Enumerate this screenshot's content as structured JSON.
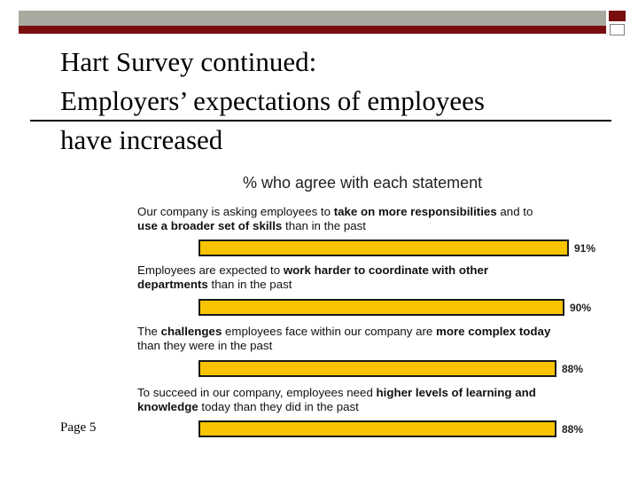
{
  "slide": {
    "title_line1": "Hart Survey continued:",
    "title_line2": "Employers’ expectations of employees",
    "title_line3": "have increased",
    "page_label": "Page 5",
    "colors": {
      "bar": "#f8c400",
      "bar_outline": "#1a1a1a",
      "accent_dark": "#7a0e0e",
      "accent_gray": "#a9a9a0"
    }
  },
  "chart_data": {
    "type": "bar",
    "title": "% who agree with each statement",
    "xlim": [
      0,
      100
    ],
    "unit": "%",
    "categories": [
      [
        {
          "t": "Our company is asking employees to ",
          "b": false
        },
        {
          "t": "take on more responsibilities",
          "b": true
        },
        {
          "t": " and to ",
          "b": false
        },
        {
          "t": "use a broader set of skills",
          "b": true
        },
        {
          "t": " than in the past",
          "b": false
        }
      ],
      [
        {
          "t": "Employees are expected to ",
          "b": false
        },
        {
          "t": "work harder to coordinate with other departments",
          "b": true
        },
        {
          "t": " than in the past",
          "b": false
        }
      ],
      [
        {
          "t": "The ",
          "b": false
        },
        {
          "t": "challenges",
          "b": true
        },
        {
          "t": " employees face within our company are ",
          "b": false
        },
        {
          "t": "more complex today",
          "b": true
        },
        {
          "t": " than they were in the past",
          "b": false
        }
      ],
      [
        {
          "t": "To succeed in our company, employees need ",
          "b": false
        },
        {
          "t": "higher levels of learning and knowledge",
          "b": true
        },
        {
          "t": " today than they did in the past",
          "b": false
        }
      ]
    ],
    "values": [
      91,
      90,
      88,
      88
    ],
    "value_labels": [
      "91%",
      "90%",
      "88%",
      "88%"
    ]
  }
}
